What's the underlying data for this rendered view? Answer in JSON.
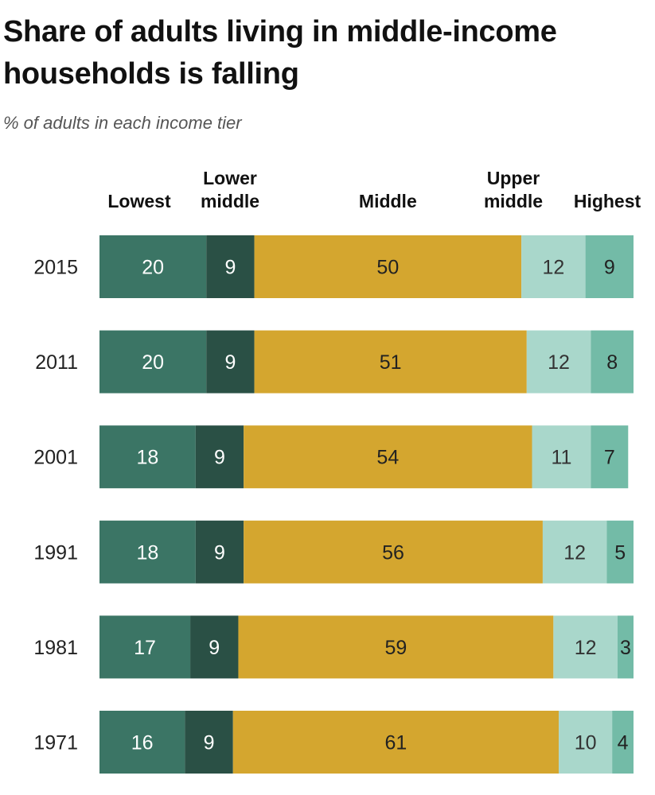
{
  "chart_data": {
    "type": "bar",
    "orientation": "horizontal",
    "stacked": true,
    "title": "Share of adults living in middle-income households is falling",
    "subtitle": "% of adults in each income tier",
    "categories": [
      "2015",
      "2011",
      "2001",
      "1991",
      "1981",
      "1971"
    ],
    "series": [
      {
        "name": "Lowest",
        "values": [
          20,
          20,
          18,
          18,
          17,
          16
        ],
        "color": "#3b7565",
        "label_color": "#ffffff"
      },
      {
        "name": "Lower middle",
        "values": [
          9,
          9,
          9,
          9,
          9,
          9
        ],
        "color": "#2a5045",
        "label_color": "#ffffff"
      },
      {
        "name": "Middle",
        "values": [
          50,
          51,
          54,
          56,
          59,
          61
        ],
        "color": "#d4a62f",
        "label_color": "#222222"
      },
      {
        "name": "Upper middle",
        "values": [
          12,
          12,
          11,
          12,
          12,
          10
        ],
        "color": "#a9d7cb",
        "label_color": "#333333"
      },
      {
        "name": "Highest",
        "values": [
          9,
          8,
          7,
          5,
          3,
          4
        ],
        "color": "#73bba7",
        "label_color": "#222222"
      }
    ],
    "xlim": [
      0,
      100
    ],
    "legend": "top",
    "grid": false
  }
}
